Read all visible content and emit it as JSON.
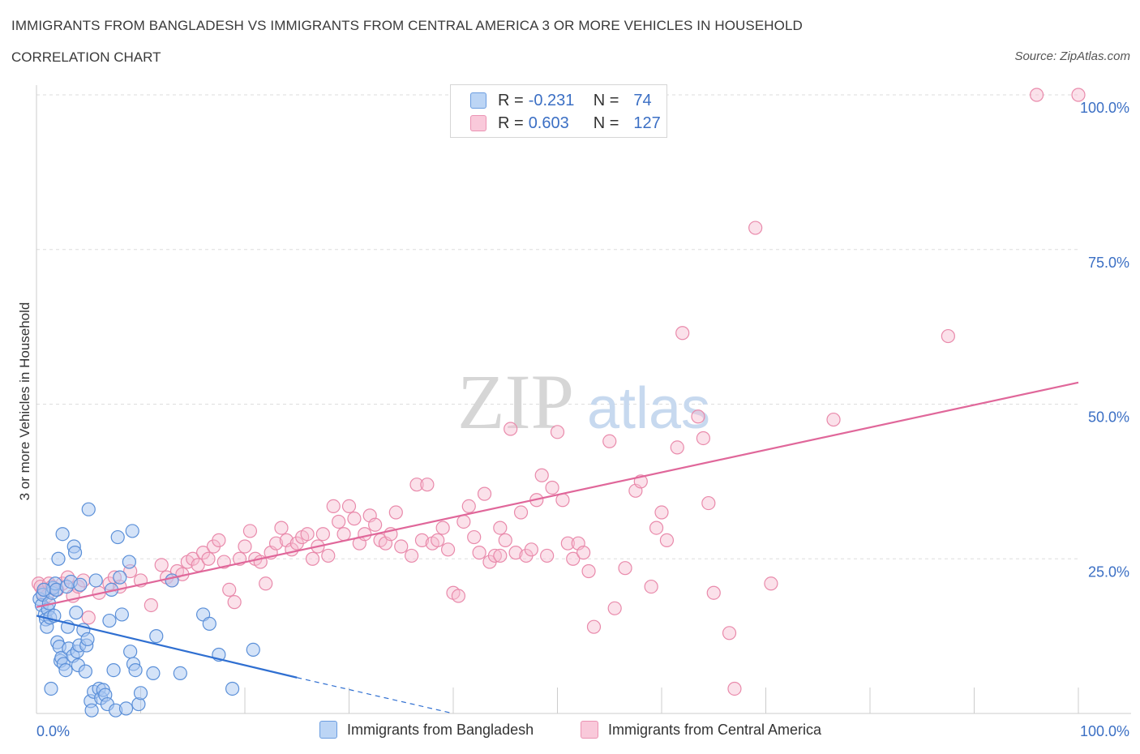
{
  "header": {
    "title": "IMMIGRANTS FROM BANGLADESH VS IMMIGRANTS FROM CENTRAL AMERICA 3 OR MORE VEHICLES IN HOUSEHOLD",
    "subtitle": "CORRELATION CHART",
    "source": "Source: ZipAtlas.com"
  },
  "legend": {
    "blue": {
      "r_label": "R =",
      "r_value": "-0.231",
      "n_label": "N =",
      "n_value": "74"
    },
    "pink": {
      "r_label": "R =",
      "r_value": "0.603",
      "n_label": "N =",
      "n_value": "127"
    }
  },
  "colors": {
    "blue_fill": "#a9c8f2",
    "blue_stroke": "#5a8fd8",
    "blue_line": "#2f6fd1",
    "pink_fill": "#f7bdd0",
    "pink_stroke": "#e98aab",
    "pink_line": "#e0679a",
    "axis_label": "#3b6fc4",
    "grid": "#dddddd"
  },
  "watermark": {
    "zip": "ZIP",
    "atlas": "atlas"
  },
  "chart_data": {
    "type": "scatter",
    "title": "IMMIGRANTS FROM BANGLADESH VS IMMIGRANTS FROM CENTRAL AMERICA 3 OR MORE VEHICLES IN HOUSEHOLD",
    "xlabel": "",
    "ylabel": "3 or more Vehicles in Household",
    "xlim": [
      0,
      100
    ],
    "ylim": [
      0,
      100
    ],
    "x_tick_labels": {
      "left": "0.0%",
      "right": "100.0%"
    },
    "y_ticks": [
      25,
      50,
      75,
      100
    ],
    "y_tick_labels": [
      "25.0%",
      "50.0%",
      "75.0%",
      "100.0%"
    ],
    "grid": true,
    "legend_position": "top-center",
    "series": [
      {
        "name": "Immigrants from Bangladesh",
        "color": "#a9c8f2",
        "trend": {
          "x0": 0,
          "y0": 15.8,
          "x1": 25,
          "y1": 5.8,
          "dash_to_x": 40,
          "dash_to_y": 0
        },
        "points": [
          [
            0.3,
            18.5
          ],
          [
            0.5,
            17.5
          ],
          [
            0.6,
            19.2
          ],
          [
            0.8,
            16.0
          ],
          [
            0.9,
            15.2
          ],
          [
            1.0,
            14.0
          ],
          [
            1.1,
            16.8
          ],
          [
            1.2,
            17.8
          ],
          [
            1.3,
            15.5
          ],
          [
            1.4,
            4.0
          ],
          [
            1.5,
            19.5
          ],
          [
            1.6,
            20.3
          ],
          [
            1.8,
            21.0
          ],
          [
            1.9,
            20.0
          ],
          [
            2.0,
            11.5
          ],
          [
            2.1,
            25.0
          ],
          [
            2.2,
            10.8
          ],
          [
            2.3,
            8.5
          ],
          [
            2.4,
            9.0
          ],
          [
            2.5,
            29.0
          ],
          [
            2.6,
            8.0
          ],
          [
            2.8,
            7.0
          ],
          [
            2.9,
            20.5
          ],
          [
            3.0,
            14.0
          ],
          [
            3.1,
            10.5
          ],
          [
            3.3,
            21.3
          ],
          [
            3.5,
            9.3
          ],
          [
            3.6,
            27.0
          ],
          [
            3.7,
            26.0
          ],
          [
            3.8,
            16.3
          ],
          [
            3.9,
            10.0
          ],
          [
            4.0,
            7.8
          ],
          [
            4.1,
            11.0
          ],
          [
            4.2,
            20.8
          ],
          [
            4.5,
            13.5
          ],
          [
            4.7,
            6.8
          ],
          [
            4.8,
            11.0
          ],
          [
            4.9,
            12.0
          ],
          [
            5.0,
            33.0
          ],
          [
            5.2,
            2.0
          ],
          [
            5.3,
            0.5
          ],
          [
            5.5,
            3.5
          ],
          [
            5.7,
            21.5
          ],
          [
            6.0,
            4.0
          ],
          [
            6.2,
            2.5
          ],
          [
            6.4,
            3.8
          ],
          [
            6.6,
            3.0
          ],
          [
            6.8,
            1.5
          ],
          [
            7.0,
            15.0
          ],
          [
            7.2,
            20.0
          ],
          [
            7.4,
            7.0
          ],
          [
            7.6,
            0.5
          ],
          [
            7.8,
            28.5
          ],
          [
            8.0,
            22.0
          ],
          [
            8.2,
            16.0
          ],
          [
            8.6,
            0.8
          ],
          [
            8.9,
            24.5
          ],
          [
            9.2,
            29.5
          ],
          [
            9.0,
            10.0
          ],
          [
            9.3,
            8.0
          ],
          [
            9.5,
            7.0
          ],
          [
            9.8,
            1.5
          ],
          [
            10.0,
            3.3
          ],
          [
            11.2,
            6.5
          ],
          [
            11.5,
            12.5
          ],
          [
            13.0,
            21.5
          ],
          [
            13.8,
            6.5
          ],
          [
            16.0,
            16.0
          ],
          [
            16.6,
            14.5
          ],
          [
            17.5,
            9.5
          ],
          [
            18.8,
            4.0
          ],
          [
            20.8,
            10.3
          ],
          [
            0.7,
            20.0
          ],
          [
            1.7,
            15.8
          ]
        ]
      },
      {
        "name": "Immigrants from Central America",
        "color": "#f7bdd0",
        "trend": {
          "x0": 0,
          "y0": 17.2,
          "x1": 100,
          "y1": 53.5
        },
        "points": [
          [
            0.2,
            21.0
          ],
          [
            0.4,
            20.5
          ],
          [
            0.6,
            19.5
          ],
          [
            0.8,
            20.0
          ],
          [
            1.0,
            19.0
          ],
          [
            1.2,
            21.0
          ],
          [
            1.5,
            20.5
          ],
          [
            2.0,
            20.0
          ],
          [
            2.5,
            21.0
          ],
          [
            3.0,
            22.0
          ],
          [
            3.5,
            19.0
          ],
          [
            4.0,
            20.5
          ],
          [
            4.5,
            21.5
          ],
          [
            5.0,
            15.5
          ],
          [
            6.0,
            19.5
          ],
          [
            7.0,
            21.0
          ],
          [
            7.5,
            22.0
          ],
          [
            8.0,
            20.5
          ],
          [
            9.0,
            23.0
          ],
          [
            10.0,
            21.5
          ],
          [
            11.0,
            17.5
          ],
          [
            12.0,
            24.0
          ],
          [
            12.5,
            22.0
          ],
          [
            13.0,
            21.5
          ],
          [
            13.5,
            23.0
          ],
          [
            14.0,
            22.5
          ],
          [
            14.5,
            24.5
          ],
          [
            15.0,
            25.0
          ],
          [
            15.5,
            24.0
          ],
          [
            16.0,
            26.0
          ],
          [
            16.5,
            25.0
          ],
          [
            17.0,
            27.0
          ],
          [
            17.5,
            28.0
          ],
          [
            18.0,
            24.5
          ],
          [
            18.5,
            20.0
          ],
          [
            19.0,
            18.0
          ],
          [
            19.5,
            25.0
          ],
          [
            20.0,
            27.0
          ],
          [
            20.5,
            29.5
          ],
          [
            21.0,
            25.0
          ],
          [
            21.5,
            24.5
          ],
          [
            22.0,
            21.0
          ],
          [
            22.5,
            26.0
          ],
          [
            23.0,
            27.5
          ],
          [
            23.5,
            30.0
          ],
          [
            24.0,
            28.0
          ],
          [
            24.5,
            26.5
          ],
          [
            25.0,
            27.5
          ],
          [
            25.5,
            28.5
          ],
          [
            26.0,
            29.0
          ],
          [
            26.5,
            25.0
          ],
          [
            27.0,
            27.0
          ],
          [
            27.5,
            29.0
          ],
          [
            28.0,
            25.5
          ],
          [
            28.5,
            33.5
          ],
          [
            29.0,
            31.0
          ],
          [
            29.5,
            29.0
          ],
          [
            30.0,
            33.5
          ],
          [
            30.5,
            31.5
          ],
          [
            31.0,
            27.5
          ],
          [
            31.5,
            29.0
          ],
          [
            32.0,
            32.0
          ],
          [
            32.5,
            30.5
          ],
          [
            33.0,
            28.0
          ],
          [
            33.5,
            27.5
          ],
          [
            34.0,
            29.0
          ],
          [
            34.5,
            32.5
          ],
          [
            35.0,
            27.0
          ],
          [
            36.0,
            25.5
          ],
          [
            36.5,
            37.0
          ],
          [
            37.0,
            28.0
          ],
          [
            37.5,
            37.0
          ],
          [
            38.0,
            27.5
          ],
          [
            38.5,
            28.0
          ],
          [
            39.0,
            30.0
          ],
          [
            39.5,
            26.5
          ],
          [
            40.0,
            19.5
          ],
          [
            40.5,
            19.0
          ],
          [
            41.0,
            31.0
          ],
          [
            41.5,
            33.5
          ],
          [
            42.0,
            28.5
          ],
          [
            42.5,
            26.0
          ],
          [
            43.0,
            35.5
          ],
          [
            43.5,
            24.5
          ],
          [
            44.0,
            25.5
          ],
          [
            44.5,
            30.0
          ],
          [
            45.0,
            28.0
          ],
          [
            45.5,
            46.0
          ],
          [
            46.0,
            26.0
          ],
          [
            46.5,
            32.5
          ],
          [
            47.0,
            25.5
          ],
          [
            47.5,
            26.5
          ],
          [
            48.0,
            34.5
          ],
          [
            48.5,
            38.5
          ],
          [
            49.0,
            25.5
          ],
          [
            49.5,
            36.5
          ],
          [
            50.0,
            45.5
          ],
          [
            50.5,
            34.5
          ],
          [
            51.0,
            27.5
          ],
          [
            51.5,
            25.0
          ],
          [
            52.0,
            27.5
          ],
          [
            53.0,
            23.0
          ],
          [
            53.5,
            14.0
          ],
          [
            55.0,
            44.0
          ],
          [
            56.5,
            23.5
          ],
          [
            57.5,
            36.0
          ],
          [
            58.0,
            37.5
          ],
          [
            59.0,
            20.5
          ],
          [
            59.5,
            30.0
          ],
          [
            60.0,
            32.5
          ],
          [
            61.5,
            43.0
          ],
          [
            62.0,
            61.5
          ],
          [
            63.5,
            48.0
          ],
          [
            64.0,
            44.5
          ],
          [
            64.5,
            34.0
          ],
          [
            65.0,
            19.5
          ],
          [
            66.5,
            13.0
          ],
          [
            67.0,
            4.0
          ],
          [
            69.0,
            78.5
          ],
          [
            70.5,
            21.0
          ],
          [
            76.5,
            47.5
          ],
          [
            87.5,
            61.0
          ],
          [
            96.0,
            100.0
          ],
          [
            100.0,
            100.0
          ],
          [
            60.5,
            28.0
          ],
          [
            55.5,
            17.0
          ],
          [
            52.5,
            26.0
          ],
          [
            44.5,
            25.5
          ]
        ]
      }
    ]
  },
  "bottom_legend": {
    "blue_label": "Immigrants from Bangladesh",
    "pink_label": "Immigrants from Central America"
  }
}
